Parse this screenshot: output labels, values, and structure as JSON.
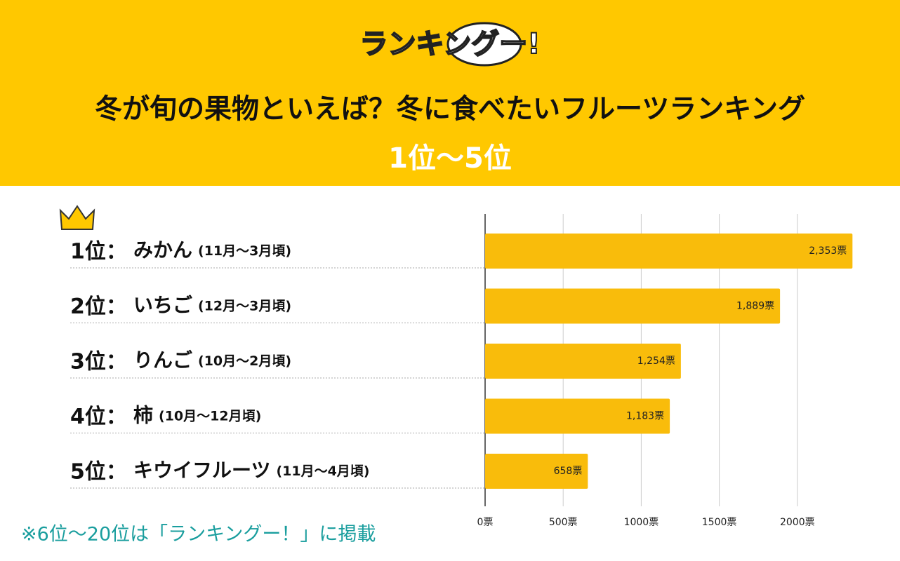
{
  "chart_data": {
    "type": "bar",
    "orientation": "horizontal",
    "logo": "ランキングー!",
    "title": "冬が旬の果物といえば？冬に食べたいフルーツランキング",
    "subtitle": "1位〜5位",
    "ranks": [
      "1位：",
      "2位：",
      "3位：",
      "4位：",
      "5位："
    ],
    "categories": [
      "みかん",
      "いちご",
      "りんご",
      "柿",
      "キウイフルーツ"
    ],
    "periods": [
      "(11月〜3月頃)",
      "(12月〜3月頃)",
      "(10月〜2月頃)",
      "(10月〜12月頃)",
      "(11月〜4月頃)"
    ],
    "values": [
      2353,
      1889,
      1254,
      1183,
      658
    ],
    "value_labels": [
      "2,353票",
      "1,889票",
      "1,254票",
      "1,183票",
      "658票"
    ],
    "color": "#F9BC0B",
    "xlim": [
      0,
      2500
    ],
    "xticks": [
      {
        "value": 0,
        "label": "0票"
      },
      {
        "value": 500,
        "label": "500票"
      },
      {
        "value": 1000,
        "label": "1000票"
      },
      {
        "value": 1500,
        "label": "1500票"
      },
      {
        "value": 2000,
        "label": "2000票"
      }
    ],
    "grid": true,
    "footnote": "※6位〜20位は「ランキングー！」に掲載"
  }
}
